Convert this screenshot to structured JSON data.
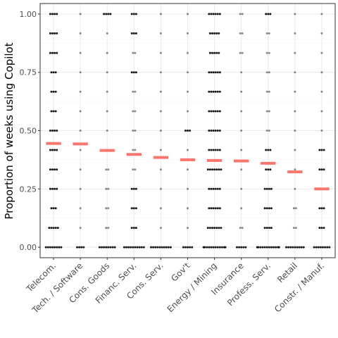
{
  "chart_data": {
    "type": "scatter",
    "title": "",
    "xlabel": "",
    "ylabel": "Proportion of weeks using Copilot",
    "categories": [
      "Telecom.",
      "Tech. / Software",
      "Cons. Goods",
      "Financ. Serv.",
      "Cons. Serv.",
      "Gov't",
      "Energy / Mining",
      "Insurance",
      "Profess. Serv.",
      "Retail",
      "Constr. / Manuf."
    ],
    "means": [
      0.445,
      0.443,
      0.415,
      0.398,
      0.385,
      0.375,
      0.372,
      0.37,
      0.36,
      0.323,
      0.25
    ],
    "y_ticks": [
      0.0,
      0.25,
      0.5,
      0.75,
      1.0
    ],
    "y_tick_labels": [
      "0.00",
      "0.25",
      "0.50",
      "0.75",
      "1.00"
    ],
    "ylim": [
      -0.045,
      1.045
    ],
    "grid": true,
    "point_levels": [
      0.0,
      0.083,
      0.167,
      0.25,
      0.333,
      0.417,
      0.5,
      0.583,
      0.667,
      0.75,
      0.833,
      0.917,
      1.0
    ],
    "point_counts": [
      [
        8,
        5,
        3,
        4,
        4,
        4,
        4,
        3,
        3,
        3,
        4,
        4,
        4
      ],
      [
        4,
        1,
        1,
        1,
        1,
        1,
        1,
        1,
        1,
        1,
        1,
        1,
        1
      ],
      [
        8,
        2,
        2,
        2,
        2,
        2,
        1,
        1,
        1,
        1,
        1,
        1,
        4
      ],
      [
        10,
        3,
        3,
        3,
        2,
        2,
        2,
        2,
        2,
        3,
        2,
        3,
        3
      ],
      [
        10,
        1,
        1,
        1,
        1,
        1,
        1,
        1,
        1,
        1,
        1,
        1,
        1
      ],
      [
        5,
        1,
        1,
        1,
        1,
        1,
        3,
        1,
        1,
        1,
        1,
        1,
        1
      ],
      [
        12,
        7,
        6,
        6,
        7,
        6,
        6,
        6,
        6,
        6,
        5,
        5,
        6
      ],
      [
        5,
        2,
        1,
        1,
        1,
        1,
        1,
        1,
        1,
        1,
        2,
        2,
        2
      ],
      [
        12,
        4,
        4,
        4,
        3,
        3,
        2,
        2,
        2,
        2,
        2,
        2,
        3
      ],
      [
        9,
        2,
        2,
        1,
        1,
        1,
        1,
        1,
        1,
        1,
        1,
        1,
        1
      ],
      [
        8,
        3,
        3,
        3,
        3,
        3,
        1,
        1,
        1,
        1,
        1,
        1,
        1
      ]
    ],
    "colors": {
      "point": "#000000",
      "mean_bar": "#f8766d",
      "panel_bg": "#ffffff",
      "panel_border": "#333333",
      "grid_major": "#ebebeb",
      "grid_minor": "#f5f5f5"
    }
  }
}
